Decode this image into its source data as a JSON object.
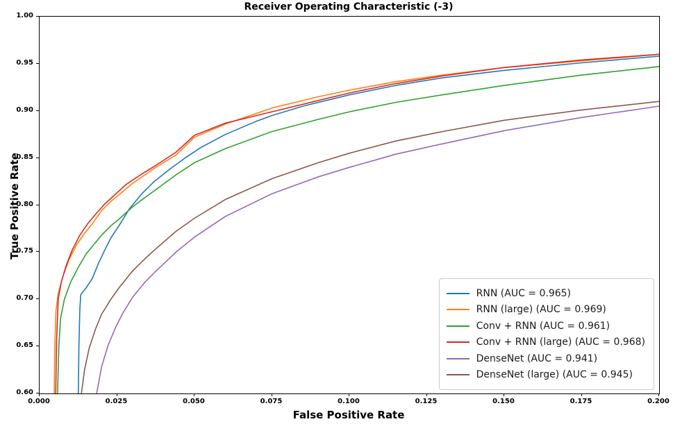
{
  "title": "Receiver Operating Characteristic (-3)",
  "chart_data": {
    "type": "line",
    "title": "Receiver Operating Characteristic (-3)",
    "xlabel": "False Positive Rate",
    "ylabel": "True Positive Rate",
    "xlim": [
      0.0,
      0.2
    ],
    "ylim": [
      0.6,
      1.0
    ],
    "grid": false,
    "legend_position": "lower right",
    "x_tick_labels": [
      "0.000",
      "0.025",
      "0.050",
      "0.075",
      "0.100",
      "0.125",
      "0.150",
      "0.175",
      "0.200"
    ],
    "x_tick_values": [
      0.0,
      0.025,
      0.05,
      0.075,
      0.1,
      0.125,
      0.15,
      0.175,
      0.2
    ],
    "y_tick_labels": [
      "0.60",
      "0.65",
      "0.70",
      "0.75",
      "0.80",
      "0.85",
      "0.90",
      "0.95",
      "1.00"
    ],
    "y_tick_values": [
      0.6,
      0.65,
      0.7,
      0.75,
      0.8,
      0.85,
      0.9,
      0.95,
      1.0
    ],
    "series": [
      {
        "name": "RNN (AUC = 0.965)",
        "auc": 0.965,
        "color": "#1f77b4",
        "points": [
          [
            0.0125,
            0.6
          ],
          [
            0.0127,
            0.65
          ],
          [
            0.013,
            0.69
          ],
          [
            0.0133,
            0.705
          ],
          [
            0.015,
            0.712
          ],
          [
            0.017,
            0.722
          ],
          [
            0.019,
            0.738
          ],
          [
            0.021,
            0.752
          ],
          [
            0.023,
            0.765
          ],
          [
            0.0256,
            0.778
          ],
          [
            0.029,
            0.796
          ],
          [
            0.033,
            0.812
          ],
          [
            0.037,
            0.825
          ],
          [
            0.042,
            0.838
          ],
          [
            0.047,
            0.85
          ],
          [
            0.052,
            0.861
          ],
          [
            0.06,
            0.875
          ],
          [
            0.07,
            0.889
          ],
          [
            0.075,
            0.895
          ],
          [
            0.085,
            0.905
          ],
          [
            0.1,
            0.917
          ],
          [
            0.115,
            0.927
          ],
          [
            0.13,
            0.935
          ],
          [
            0.15,
            0.943
          ],
          [
            0.175,
            0.951
          ],
          [
            0.2,
            0.958
          ]
        ]
      },
      {
        "name": "RNN (large) (AUC = 0.969)",
        "auc": 0.969,
        "color": "#ff7f0e",
        "points": [
          [
            0.0047,
            0.6
          ],
          [
            0.0049,
            0.65
          ],
          [
            0.0053,
            0.688
          ],
          [
            0.006,
            0.706
          ],
          [
            0.0075,
            0.724
          ],
          [
            0.0095,
            0.742
          ],
          [
            0.012,
            0.758
          ],
          [
            0.0145,
            0.77
          ],
          [
            0.017,
            0.78
          ],
          [
            0.02,
            0.794
          ],
          [
            0.023,
            0.804
          ],
          [
            0.0256,
            0.811
          ],
          [
            0.03,
            0.823
          ],
          [
            0.037,
            0.839
          ],
          [
            0.044,
            0.853
          ],
          [
            0.05,
            0.872
          ],
          [
            0.06,
            0.886
          ],
          [
            0.075,
            0.903
          ],
          [
            0.09,
            0.915
          ],
          [
            0.1,
            0.922
          ],
          [
            0.115,
            0.931
          ],
          [
            0.13,
            0.938
          ],
          [
            0.15,
            0.946
          ],
          [
            0.175,
            0.953
          ],
          [
            0.2,
            0.96
          ]
        ]
      },
      {
        "name": "Conv + RNN (AUC = 0.961)",
        "auc": 0.961,
        "color": "#2ca02c",
        "points": [
          [
            0.0058,
            0.6
          ],
          [
            0.0062,
            0.65
          ],
          [
            0.0068,
            0.68
          ],
          [
            0.008,
            0.7
          ],
          [
            0.01,
            0.718
          ],
          [
            0.0125,
            0.734
          ],
          [
            0.015,
            0.748
          ],
          [
            0.0175,
            0.758
          ],
          [
            0.02,
            0.768
          ],
          [
            0.023,
            0.778
          ],
          [
            0.0256,
            0.785
          ],
          [
            0.03,
            0.798
          ],
          [
            0.034,
            0.808
          ],
          [
            0.037,
            0.815
          ],
          [
            0.044,
            0.832
          ],
          [
            0.05,
            0.845
          ],
          [
            0.06,
            0.86
          ],
          [
            0.075,
            0.878
          ],
          [
            0.09,
            0.891
          ],
          [
            0.1,
            0.899
          ],
          [
            0.115,
            0.909
          ],
          [
            0.13,
            0.917
          ],
          [
            0.15,
            0.927
          ],
          [
            0.175,
            0.938
          ],
          [
            0.2,
            0.947
          ]
        ]
      },
      {
        "name": "Conv + RNN (large) (AUC = 0.968)",
        "auc": 0.968,
        "color": "#d62728",
        "points": [
          [
            0.0052,
            0.6
          ],
          [
            0.0055,
            0.655
          ],
          [
            0.006,
            0.7
          ],
          [
            0.007,
            0.718
          ],
          [
            0.0085,
            0.735
          ],
          [
            0.0105,
            0.752
          ],
          [
            0.013,
            0.768
          ],
          [
            0.0155,
            0.78
          ],
          [
            0.018,
            0.79
          ],
          [
            0.021,
            0.801
          ],
          [
            0.024,
            0.81
          ],
          [
            0.028,
            0.822
          ],
          [
            0.033,
            0.833
          ],
          [
            0.037,
            0.841
          ],
          [
            0.044,
            0.856
          ],
          [
            0.05,
            0.874
          ],
          [
            0.06,
            0.887
          ],
          [
            0.075,
            0.899
          ],
          [
            0.09,
            0.911
          ],
          [
            0.1,
            0.919
          ],
          [
            0.115,
            0.929
          ],
          [
            0.13,
            0.937
          ],
          [
            0.15,
            0.946
          ],
          [
            0.175,
            0.954
          ],
          [
            0.2,
            0.96
          ]
        ]
      },
      {
        "name": "DenseNet (AUC = 0.941)",
        "auc": 0.941,
        "color": "#9467bd",
        "points": [
          [
            0.0184,
            0.6
          ],
          [
            0.02,
            0.628
          ],
          [
            0.022,
            0.65
          ],
          [
            0.0245,
            0.67
          ],
          [
            0.027,
            0.686
          ],
          [
            0.03,
            0.702
          ],
          [
            0.034,
            0.718
          ],
          [
            0.037,
            0.728
          ],
          [
            0.044,
            0.75
          ],
          [
            0.05,
            0.766
          ],
          [
            0.06,
            0.788
          ],
          [
            0.075,
            0.812
          ],
          [
            0.09,
            0.83
          ],
          [
            0.1,
            0.84
          ],
          [
            0.115,
            0.854
          ],
          [
            0.13,
            0.865
          ],
          [
            0.15,
            0.879
          ],
          [
            0.175,
            0.893
          ],
          [
            0.2,
            0.905
          ]
        ]
      },
      {
        "name": "DenseNet (large) (AUC = 0.945)",
        "auc": 0.945,
        "color": "#8c564b",
        "points": [
          [
            0.0135,
            0.6
          ],
          [
            0.0145,
            0.625
          ],
          [
            0.016,
            0.648
          ],
          [
            0.018,
            0.668
          ],
          [
            0.02,
            0.684
          ],
          [
            0.023,
            0.7
          ],
          [
            0.0256,
            0.712
          ],
          [
            0.03,
            0.73
          ],
          [
            0.034,
            0.743
          ],
          [
            0.037,
            0.752
          ],
          [
            0.044,
            0.772
          ],
          [
            0.05,
            0.786
          ],
          [
            0.06,
            0.806
          ],
          [
            0.075,
            0.828
          ],
          [
            0.09,
            0.845
          ],
          [
            0.1,
            0.855
          ],
          [
            0.115,
            0.868
          ],
          [
            0.13,
            0.878
          ],
          [
            0.15,
            0.89
          ],
          [
            0.175,
            0.901
          ],
          [
            0.2,
            0.91
          ]
        ]
      }
    ]
  }
}
